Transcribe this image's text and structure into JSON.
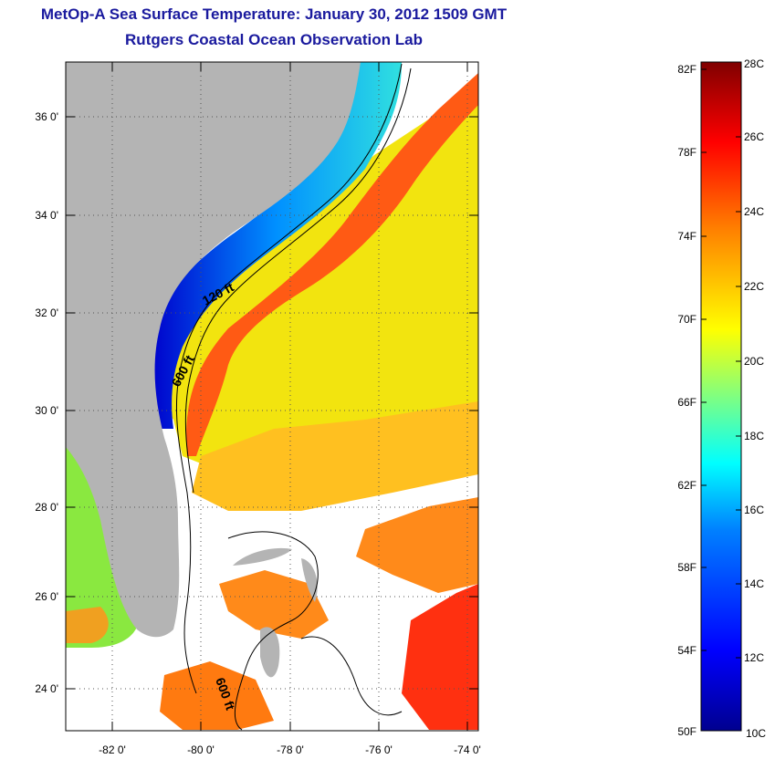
{
  "title": "MetOp-A Sea Surface Temperature:  January 30, 2012 1509 GMT",
  "subtitle": "Rutgers Coastal Ocean Observation Lab",
  "map": {
    "lat_labels": [
      "36 0'",
      "34 0'",
      "32 0'",
      "30 0'",
      "28 0'",
      "26 0'",
      "24 0'"
    ],
    "lon_labels": [
      "-82 0'",
      "-80 0'",
      "-78 0'",
      "-76 0'",
      "-74 0'"
    ],
    "contour_labels": [
      "120 ft",
      "600 ft",
      "600 ft"
    ],
    "colors": {
      "land": "#b4b4b4",
      "missing_data": "#ffffff"
    }
  },
  "colorbar": {
    "fahrenheit_labels": [
      "82F",
      "78F",
      "74F",
      "70F",
      "66F",
      "62F",
      "58F",
      "54F",
      "50F"
    ],
    "celsius_labels": [
      "28C",
      "26C",
      "24C",
      "22C",
      "20C",
      "18C",
      "16C",
      "14C",
      "12C",
      "10C"
    ],
    "colormap": [
      "#00008f",
      "#0000ff",
      "#0080ff",
      "#00ffff",
      "#80ff80",
      "#ffff00",
      "#ff8000",
      "#ff0000",
      "#800000"
    ]
  }
}
